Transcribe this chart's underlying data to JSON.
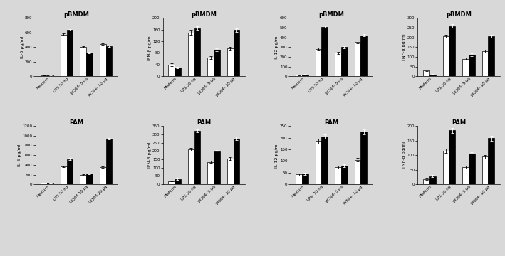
{
  "background_color": "#d8d8d8",
  "bar_width": 0.32,
  "subplots": [
    {
      "title": "pBMDM",
      "ylabel": "IL-6 pg/ml",
      "ylim": [
        0,
        800
      ],
      "yticks": [
        0,
        200,
        400,
        600,
        800
      ],
      "categories": [
        "Medium",
        "LPS 50 ng",
        "W364- 5 μg",
        "W364- 10 μg"
      ],
      "white_bars": [
        10,
        570,
        400,
        440
      ],
      "black_bars": [
        15,
        640,
        325,
        410
      ],
      "white_err": [
        2,
        15,
        12,
        10
      ],
      "black_err": [
        3,
        10,
        10,
        8
      ]
    },
    {
      "title": "pBMDM",
      "ylabel": "IFN-β pg/ml",
      "ylim": [
        0,
        200
      ],
      "yticks": [
        0,
        40,
        80,
        120,
        160,
        200
      ],
      "categories": [
        "Medium",
        "LPS 50 ng",
        "W364- 5 μg",
        "W364- 10 μg"
      ],
      "white_bars": [
        40,
        150,
        65,
        95
      ],
      "black_bars": [
        30,
        165,
        90,
        158
      ],
      "white_err": [
        4,
        8,
        5,
        6
      ],
      "black_err": [
        3,
        7,
        5,
        6
      ]
    },
    {
      "title": "pBMDM",
      "ylabel": "IL-12 pg/ml",
      "ylim": [
        0,
        600
      ],
      "yticks": [
        0,
        100,
        200,
        300,
        400,
        500,
        600
      ],
      "categories": [
        "Medium",
        "LPS 50 ng",
        "W364- 5 μg",
        "W364- 10 μg"
      ],
      "white_bars": [
        15,
        280,
        240,
        355
      ],
      "black_bars": [
        20,
        510,
        300,
        420
      ],
      "white_err": [
        3,
        12,
        10,
        15
      ],
      "black_err": [
        5,
        10,
        10,
        12
      ]
    },
    {
      "title": "pBMDM",
      "ylabel": "TNF-α pg/ml",
      "ylim": [
        0,
        300
      ],
      "yticks": [
        0,
        50,
        100,
        150,
        200,
        250,
        300
      ],
      "categories": [
        "Medium",
        "LPS 50 ng",
        "W364- 5 μg",
        "W364- 10 μg"
      ],
      "white_bars": [
        30,
        205,
        90,
        130
      ],
      "black_bars": [
        10,
        258,
        110,
        205
      ],
      "white_err": [
        4,
        8,
        6,
        8
      ],
      "black_err": [
        2,
        10,
        7,
        8
      ]
    },
    {
      "title": "PAM",
      "ylabel": "IL-6 pg/ml",
      "ylim": [
        0,
        1200
      ],
      "yticks": [
        0,
        200,
        400,
        600,
        800,
        1000,
        1200
      ],
      "categories": [
        "Medium",
        "LPS 50 ng",
        "W364 10 μg",
        "W364 20 μg"
      ],
      "white_bars": [
        30,
        375,
        195,
        360
      ],
      "black_bars": [
        15,
        520,
        215,
        940
      ],
      "white_err": [
        5,
        15,
        10,
        15
      ],
      "black_err": [
        3,
        20,
        12,
        20
      ]
    },
    {
      "title": "PAM",
      "ylabel": "IFN-β pg/ml",
      "ylim": [
        0,
        350
      ],
      "yticks": [
        0,
        50,
        100,
        150,
        200,
        250,
        300,
        350
      ],
      "categories": [
        "Medium",
        "LPS 50 ng",
        "W364- 5 μg",
        "W364- 10 μg"
      ],
      "white_bars": [
        20,
        210,
        135,
        155
      ],
      "black_bars": [
        30,
        320,
        195,
        275
      ],
      "white_err": [
        4,
        10,
        8,
        8
      ],
      "black_err": [
        5,
        8,
        10,
        10
      ]
    },
    {
      "title": "PAM",
      "ylabel": "IL-12 pg/ml",
      "ylim": [
        0,
        250
      ],
      "yticks": [
        0,
        50,
        100,
        150,
        200,
        250
      ],
      "categories": [
        "Medium",
        "LPS- 50 ng",
        "W364- 5 μg",
        "W364- 10 μg"
      ],
      "white_bars": [
        42,
        185,
        75,
        105
      ],
      "black_bars": [
        45,
        205,
        80,
        225
      ],
      "white_err": [
        4,
        10,
        6,
        8
      ],
      "black_err": [
        4,
        8,
        5,
        10
      ]
    },
    {
      "title": "PAM",
      "ylabel": "TNF-α pg/ml",
      "ylim": [
        0,
        200
      ],
      "yticks": [
        0,
        50,
        100,
        150,
        200
      ],
      "categories": [
        "Medium",
        "LPS 50 ng",
        "W364- 5 μg",
        "W364- 10 μg"
      ],
      "white_bars": [
        18,
        115,
        60,
        95
      ],
      "black_bars": [
        28,
        185,
        105,
        158
      ],
      "white_err": [
        3,
        8,
        5,
        6
      ],
      "black_err": [
        4,
        8,
        6,
        8
      ]
    }
  ]
}
